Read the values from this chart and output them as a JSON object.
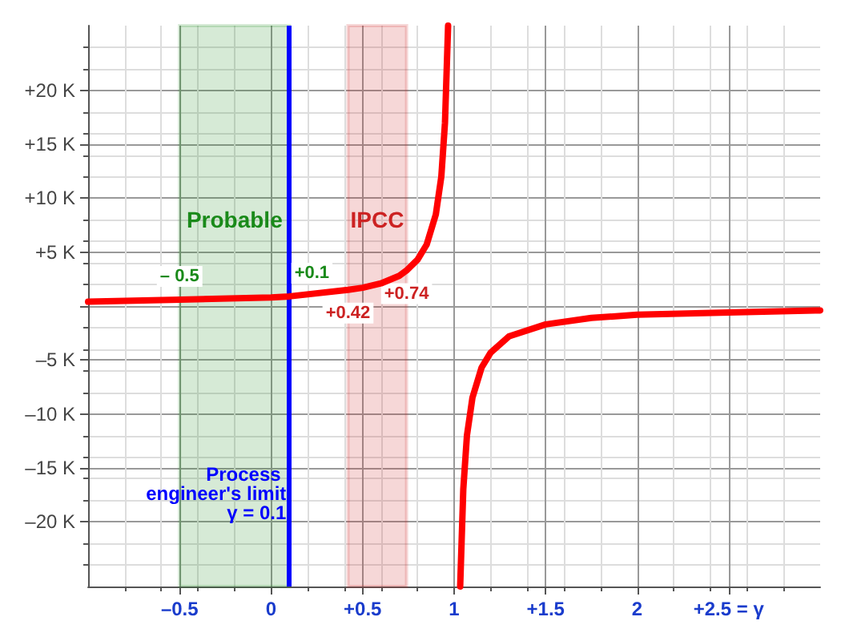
{
  "chart_data": {
    "type": "line",
    "xlim": [
      -1,
      3
    ],
    "ylim": [
      -26,
      26
    ],
    "xticks": [
      {
        "value": -0.5,
        "label": "–0.5"
      },
      0,
      {
        "value": 0.5,
        "label": "+0.5"
      },
      1,
      {
        "value": 1.5,
        "label": "+1.5"
      },
      2,
      {
        "value": 2.5,
        "label": "+2.5 = γ"
      }
    ],
    "yticks": [
      {
        "value": -20,
        "label": "–20 K"
      },
      {
        "value": -15,
        "label": "–15 K"
      },
      {
        "value": -10,
        "label": "–10 K"
      },
      {
        "value": -5,
        "label": "–5 K"
      },
      {
        "value": 0,
        "label": null
      },
      {
        "value": 5,
        "label": "+5 K"
      },
      {
        "value": 10,
        "label": "+10 K"
      },
      {
        "value": 15,
        "label": "+15 K"
      },
      {
        "value": 20,
        "label": "+20 K"
      }
    ],
    "series": [
      {
        "color": "#ff0000",
        "x": [
          -1,
          -0.5,
          0,
          0.1,
          0.42,
          0.5,
          0.6,
          0.7,
          0.74,
          0.8,
          0.85,
          0.9,
          0.93,
          0.95,
          0.967
        ],
        "values": [
          0.4,
          0.6,
          0.8,
          0.9,
          1.5,
          1.7,
          2.1,
          2.8,
          3.3,
          4.3,
          5.7,
          8.5,
          12,
          17,
          26
        ]
      },
      {
        "color": "#ff0000",
        "x": [
          1.033,
          1.05,
          1.07,
          1.1,
          1.15,
          1.2,
          1.3,
          1.5,
          1.75,
          2,
          2.5,
          3
        ],
        "values": [
          -26,
          -17,
          -12,
          -8.5,
          -5.7,
          -4.3,
          -2.8,
          -1.7,
          -1.1,
          -0.8,
          -0.6,
          -0.4
        ]
      }
    ],
    "ref_lines": [
      {
        "axis": "x",
        "value": 0.1,
        "label": "Process engineer's limit γ = 0.1",
        "color": "#0000ff"
      }
    ],
    "bands": [
      {
        "axis": "x",
        "from": -0.5,
        "to": 0.1,
        "label": "Probable",
        "color": "#1a8a1a"
      },
      {
        "axis": "x",
        "from": 0.42,
        "to": 0.74,
        "label": "IPCC",
        "color": "#cc2222"
      }
    ],
    "annotations": [
      {
        "text": "– 0.5",
        "x": -0.5,
        "y": 0.6
      },
      {
        "text": "+0.1",
        "x": 0.1,
        "y": 0.9
      },
      {
        "text": "+0.42",
        "x": 0.42,
        "y": 1.5
      },
      {
        "text": "+0.74",
        "x": 0.74,
        "y": 3.3
      }
    ],
    "grid": true,
    "marker": "none",
    "line_style": "solid"
  }
}
